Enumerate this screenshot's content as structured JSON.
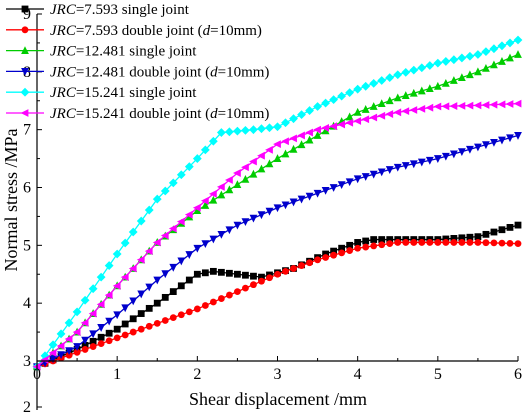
{
  "chart_data": {
    "type": "line",
    "title": "",
    "xlabel": "Shear displacement /mm",
    "ylabel": "Normal stress /MPa",
    "xlim": [
      0,
      6
    ],
    "ylim": [
      2,
      9
    ],
    "x_ticks": [
      "0",
      "1",
      "2",
      "3",
      "4",
      "5",
      "6"
    ],
    "y_ticks": [
      "2",
      "3",
      "4",
      "5",
      "6",
      "7",
      "8",
      "9"
    ],
    "grid": false,
    "legend_position": "top-left",
    "series": [
      {
        "name": "JRC=7.593 single joint",
        "legend_italic": "JRC",
        "legend_rest": "=7.593 single joint",
        "color": "#000000",
        "marker": "square",
        "points": [
          [
            0,
            2.9
          ],
          [
            0.5,
            3.2
          ],
          [
            1,
            3.55
          ],
          [
            1.5,
            4.0
          ],
          [
            1.8,
            4.3
          ],
          [
            2,
            4.5
          ],
          [
            2.2,
            4.55
          ],
          [
            2.5,
            4.5
          ],
          [
            2.8,
            4.45
          ],
          [
            3.2,
            4.6
          ],
          [
            3.6,
            4.85
          ],
          [
            4,
            5.05
          ],
          [
            4.2,
            5.1
          ],
          [
            4.6,
            5.1
          ],
          [
            5,
            5.1
          ],
          [
            5.5,
            5.15
          ],
          [
            6,
            5.35
          ]
        ]
      },
      {
        "name": "JRC=7.593 double joint (d=10mm)",
        "legend_italic": "JRC",
        "legend_rest": "=7.593 double joint (",
        "legend_italic2": "d",
        "legend_rest2": "=10mm)",
        "color": "#ff0000",
        "marker": "circle",
        "points": [
          [
            0,
            2.9
          ],
          [
            0.5,
            3.15
          ],
          [
            1,
            3.4
          ],
          [
            1.5,
            3.65
          ],
          [
            2,
            3.9
          ],
          [
            2.5,
            4.2
          ],
          [
            3,
            4.5
          ],
          [
            3.5,
            4.75
          ],
          [
            4,
            4.95
          ],
          [
            4.5,
            5.05
          ],
          [
            5,
            5.05
          ],
          [
            5.5,
            5.05
          ],
          [
            6,
            5.03
          ]
        ]
      },
      {
        "name": "JRC=12.481 single joint",
        "legend_italic": "JRC",
        "legend_rest": "=12.481 single joint",
        "color": "#00cc00",
        "marker": "triangle-up",
        "points": [
          [
            0,
            2.9
          ],
          [
            0.5,
            3.5
          ],
          [
            1,
            4.3
          ],
          [
            1.5,
            5.05
          ],
          [
            2,
            5.6
          ],
          [
            2.5,
            6.05
          ],
          [
            3,
            6.5
          ],
          [
            3.5,
            6.9
          ],
          [
            4,
            7.3
          ],
          [
            4.5,
            7.55
          ],
          [
            5,
            7.75
          ],
          [
            5.5,
            8.0
          ],
          [
            6,
            8.3
          ]
        ]
      },
      {
        "name": "JRC=12.481 double joint (d=10mm)",
        "legend_italic": "JRC",
        "legend_rest": "=12.481 double joint (",
        "legend_italic2": "d",
        "legend_rest2": "=10mm)",
        "color": "#0000cc",
        "marker": "triangle-down",
        "points": [
          [
            0,
            2.9
          ],
          [
            0.5,
            3.25
          ],
          [
            1,
            3.8
          ],
          [
            1.5,
            4.4
          ],
          [
            2,
            4.95
          ],
          [
            2.5,
            5.35
          ],
          [
            3,
            5.65
          ],
          [
            3.5,
            5.9
          ],
          [
            4,
            6.15
          ],
          [
            4.5,
            6.35
          ],
          [
            5,
            6.5
          ],
          [
            5.5,
            6.7
          ],
          [
            6,
            6.9
          ]
        ]
      },
      {
        "name": "JRC=15.241 single joint",
        "legend_italic": "JRC",
        "legend_rest": "=15.241 single joint",
        "color": "#00ffff",
        "marker": "diamond",
        "points": [
          [
            0,
            2.9
          ],
          [
            0.5,
            3.85
          ],
          [
            1,
            4.85
          ],
          [
            1.5,
            5.8
          ],
          [
            2,
            6.5
          ],
          [
            2.3,
            6.95
          ],
          [
            2.7,
            7.0
          ],
          [
            3,
            7.05
          ],
          [
            3.5,
            7.4
          ],
          [
            4,
            7.7
          ],
          [
            4.5,
            7.95
          ],
          [
            5,
            8.15
          ],
          [
            5.5,
            8.3
          ],
          [
            6,
            8.55
          ]
        ]
      },
      {
        "name": "JRC=15.241 double joint (d=10mm)",
        "legend_italic": "JRC",
        "legend_rest": "=15.241 double joint (",
        "legend_italic2": "d",
        "legend_rest2": "=10mm)",
        "color": "#ff00ff",
        "marker": "triangle-left",
        "points": [
          [
            0,
            2.9
          ],
          [
            0.5,
            3.5
          ],
          [
            1,
            4.3
          ],
          [
            1.5,
            5.05
          ],
          [
            2,
            5.65
          ],
          [
            2.5,
            6.25
          ],
          [
            3,
            6.75
          ],
          [
            3.5,
            7.0
          ],
          [
            4,
            7.15
          ],
          [
            4.5,
            7.3
          ],
          [
            5,
            7.4
          ],
          [
            5.5,
            7.42
          ],
          [
            6,
            7.45
          ]
        ]
      }
    ]
  }
}
